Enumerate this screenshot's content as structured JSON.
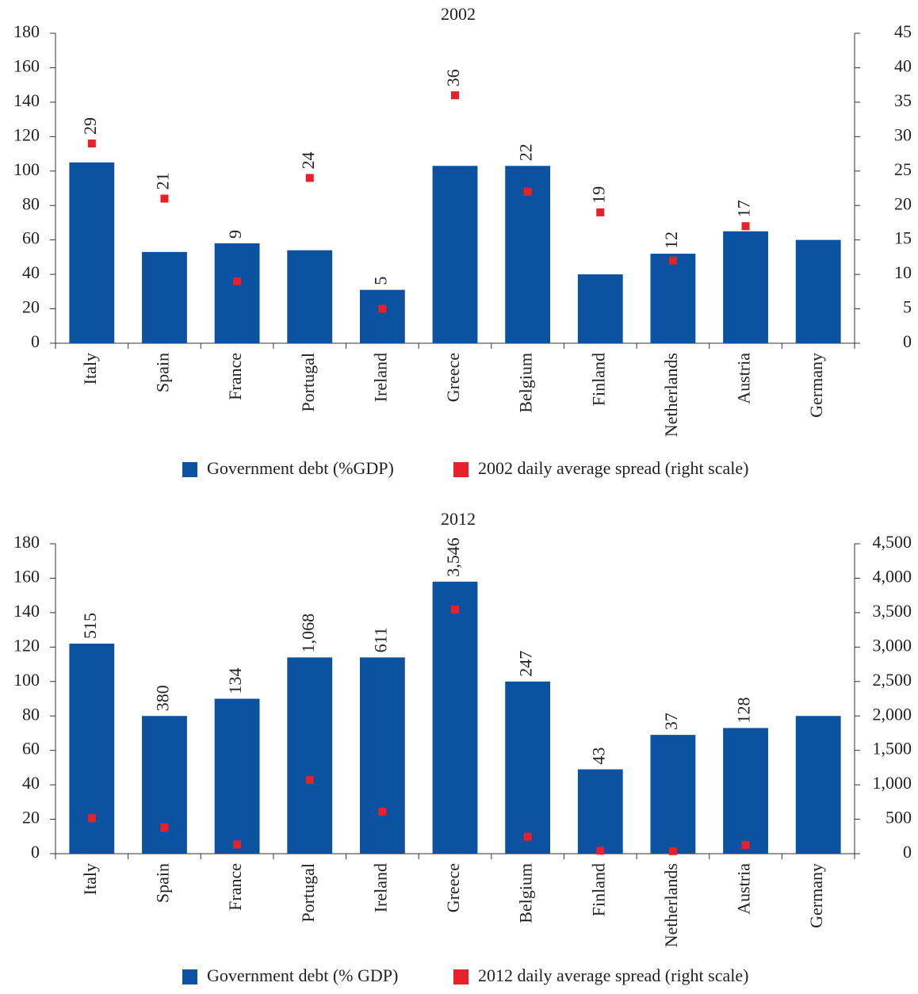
{
  "chart_data": [
    {
      "type": "bar",
      "title": "2002",
      "categories": [
        "Italy",
        "Spain",
        "France",
        "Portugal",
        "Ireland",
        "Greece",
        "Belgium",
        "Finland",
        "Netherlands",
        "Austria",
        "Germany"
      ],
      "series": [
        {
          "name": "Government debt (%GDP)",
          "color": "#0b52a0",
          "values": [
            105,
            53,
            58,
            54,
            31,
            103,
            103,
            40,
            52,
            65,
            60
          ]
        },
        {
          "name": "2002 daily average spread (right scale)",
          "color": "#e8202a",
          "axis": "y2",
          "values": [
            29,
            21,
            9,
            24,
            5,
            36,
            22,
            19,
            12,
            17,
            null
          ]
        }
      ],
      "ylim": [
        0,
        180
      ],
      "yticks": [
        0,
        20,
        40,
        60,
        80,
        100,
        120,
        140,
        160,
        180
      ],
      "y2lim": [
        0,
        45
      ],
      "y2ticks": [
        0,
        5,
        10,
        15,
        20,
        25,
        30,
        35,
        40,
        45
      ],
      "grid": false
    },
    {
      "type": "bar",
      "title": "2012",
      "categories": [
        "Italy",
        "Spain",
        "France",
        "Portugal",
        "Ireland",
        "Greece",
        "Belgium",
        "Finland",
        "Netherlands",
        "Austria",
        "Germany"
      ],
      "series": [
        {
          "name": "Government debt (% GDP)",
          "color": "#0b52a0",
          "values": [
            122,
            80,
            90,
            114,
            114,
            158,
            100,
            49,
            69,
            73,
            80
          ]
        },
        {
          "name": "2012 daily average spread (right scale)",
          "color": "#e8202a",
          "axis": "y2",
          "values": [
            515,
            380,
            134,
            1068,
            611,
            3546,
            247,
            43,
            37,
            128,
            null
          ],
          "value_labels": [
            "515",
            "380",
            "134",
            "1,068",
            "611",
            "3,546",
            "247",
            "43",
            "37",
            "128",
            null
          ]
        }
      ],
      "ylim": [
        0,
        180
      ],
      "yticks": [
        0,
        20,
        40,
        60,
        80,
        100,
        120,
        140,
        160,
        180
      ],
      "y2lim": [
        0,
        4500
      ],
      "y2ticks": [
        0,
        500,
        {
          "value": 1000,
          "label": "1,000"
        },
        {
          "value": 1500,
          "label": "1,500"
        },
        {
          "value": 2000,
          "label": "2,000"
        },
        {
          "value": 2500,
          "label": "2,500"
        },
        {
          "value": 3000,
          "label": "3,000"
        },
        {
          "value": 3500,
          "label": "3,500"
        },
        {
          "value": 4000,
          "label": "4,000"
        },
        {
          "value": 4500,
          "label": "4,500"
        }
      ],
      "grid": false
    }
  ]
}
